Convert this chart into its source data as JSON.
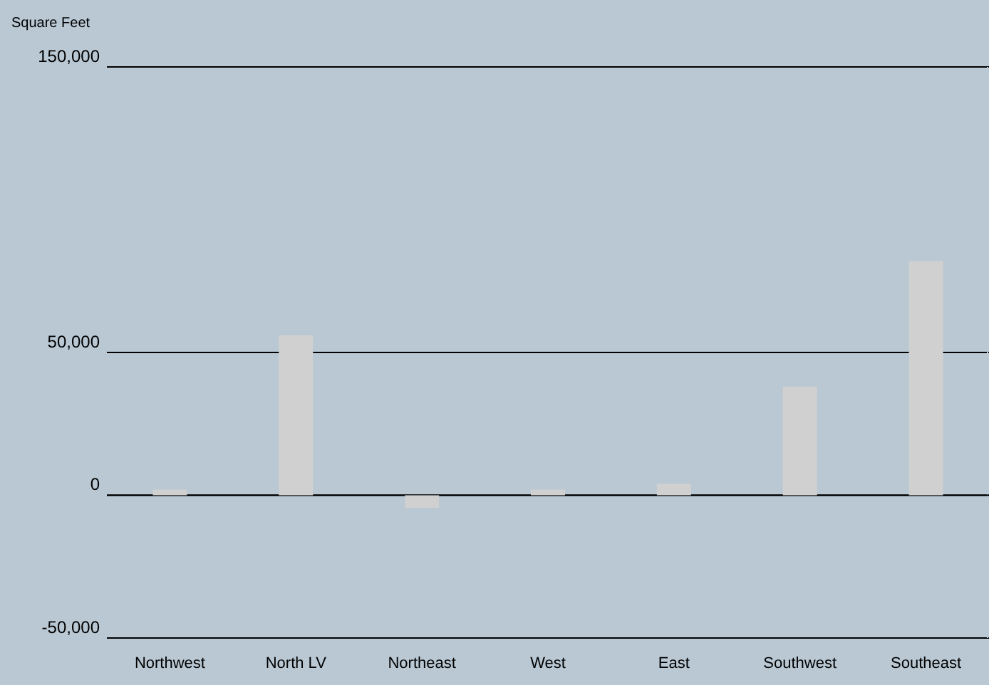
{
  "chart_data": {
    "type": "bar",
    "ylabel": "Square Feet",
    "categories": [
      "Northwest",
      "North LV",
      "Northeast",
      "West",
      "East",
      "Southwest",
      "Southeast"
    ],
    "values": [
      2000,
      56000,
      -4500,
      2000,
      4000,
      38000,
      82000
    ],
    "color": "#d0d0d0",
    "ylim": [
      -50000,
      150000
    ],
    "yticks": [
      {
        "value": -50000,
        "label": "-50,000"
      },
      {
        "value": 0,
        "label": "0"
      },
      {
        "value": 50000,
        "label": "50,000"
      },
      {
        "value": 150000,
        "label": "150,000"
      }
    ],
    "grid": "y"
  }
}
